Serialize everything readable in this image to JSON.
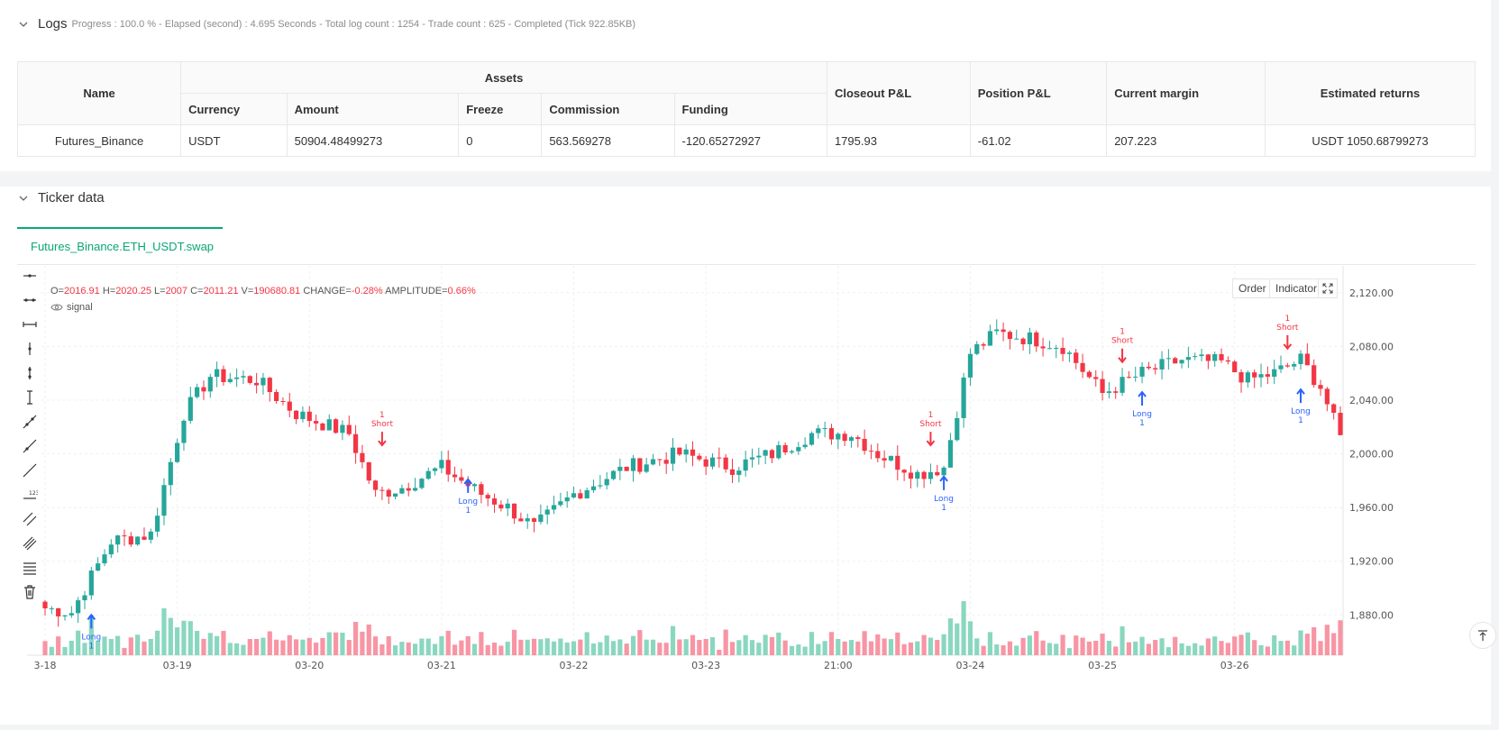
{
  "logs": {
    "title": "Logs",
    "meta": "Progress : 100.0 % - Elapsed (second) : 4.695  Seconds - Total log count : 1254 - Trade count : 625 - Completed (Tick 922.85KB)",
    "headers": {
      "name": "Name",
      "assets": "Assets",
      "currency": "Currency",
      "amount": "Amount",
      "freeze": "Freeze",
      "commission": "Commission",
      "funding": "Funding",
      "closeout": "Closeout P&L",
      "position": "Position P&L",
      "margin": "Current margin",
      "returns": "Estimated returns"
    },
    "row": {
      "name": "Futures_Binance",
      "currency": "USDT",
      "amount": "50904.48499273",
      "freeze": "0",
      "commission": "563.569278",
      "funding": "-120.65272927",
      "closeout": "1795.93",
      "position": "-61.02",
      "margin": "207.223",
      "returns": "USDT 1050.68799273"
    }
  },
  "ticker": {
    "title": "Ticker data",
    "tab": "Futures_Binance.ETH_USDT.swap",
    "order_btn": "Order",
    "indicator_btn": "Indicator",
    "signal_label": "signal",
    "ohlc": {
      "o_label": "O=",
      "o": "2016.91",
      "h_label": "H=",
      "h": "2020.25",
      "l_label": "L=",
      "l": "2007",
      "c_label": "C=",
      "c": "2011.21",
      "v_label": "V=",
      "v": "190680.81",
      "change_label": "CHANGE=",
      "change": "-0.28%",
      "amp_label": "AMPLITUDE=",
      "amp": "0.66%"
    }
  },
  "colors": {
    "up": "#26a69a",
    "down": "#f23645",
    "accent": "#0aa676",
    "signal": "#2962ff"
  },
  "chart_data": {
    "type": "candlestick",
    "symbol": "Futures_Binance.ETH_USDT.swap",
    "y_ticks": [
      1880,
      1920,
      1960,
      2000,
      2040,
      2080,
      2120
    ],
    "y_tick_labels": [
      "1,880.00",
      "1,920.00",
      "1,960.00",
      "2,000.00",
      "2,040.00",
      "2,080.00",
      "2,120.00"
    ],
    "ylim": [
      1850,
      2140
    ],
    "x_ticks": [
      {
        "label": "3-18",
        "index": 0
      },
      {
        "label": "03-19",
        "index": 20
      },
      {
        "label": "03-20",
        "index": 40
      },
      {
        "label": "03-21",
        "index": 60
      },
      {
        "label": "03-22",
        "index": 80
      },
      {
        "label": "03-23",
        "index": 100
      },
      {
        "label": "21:00",
        "index": 120
      },
      {
        "label": "03-24",
        "index": 140
      },
      {
        "label": "03-25",
        "index": 160
      },
      {
        "label": "03-26",
        "index": 180
      }
    ],
    "anchors": [
      [
        0,
        1885
      ],
      [
        4,
        1882
      ],
      [
        10,
        1935
      ],
      [
        16,
        1940
      ],
      [
        21,
        2030
      ],
      [
        25,
        2058
      ],
      [
        32,
        2055
      ],
      [
        38,
        2030
      ],
      [
        46,
        2015
      ],
      [
        50,
        1970
      ],
      [
        54,
        1975
      ],
      [
        60,
        1990
      ],
      [
        66,
        1970
      ],
      [
        70,
        1960
      ],
      [
        74,
        1945
      ],
      [
        80,
        1970
      ],
      [
        88,
        1990
      ],
      [
        96,
        2000
      ],
      [
        104,
        1990
      ],
      [
        110,
        2000
      ],
      [
        116,
        2015
      ],
      [
        122,
        2015
      ],
      [
        126,
        2000
      ],
      [
        132,
        1985
      ],
      [
        136,
        1990
      ],
      [
        140,
        2075
      ],
      [
        144,
        2090
      ],
      [
        150,
        2085
      ],
      [
        154,
        2080
      ],
      [
        160,
        2045
      ],
      [
        166,
        2060
      ],
      [
        172,
        2070
      ],
      [
        178,
        2068
      ],
      [
        182,
        2055
      ],
      [
        186,
        2060
      ],
      [
        190,
        2070
      ],
      [
        193,
        2050
      ],
      [
        196,
        2012
      ]
    ],
    "candle_count": 197,
    "signals": [
      {
        "index": 7,
        "type": "Long",
        "qty": "1",
        "price": 1882
      },
      {
        "index": 51,
        "type": "Short",
        "qty": "1",
        "price": 2003
      },
      {
        "index": 64,
        "type": "Long",
        "qty": "1",
        "price": 1983
      },
      {
        "index": 134,
        "type": "Short",
        "qty": "1",
        "price": 2003
      },
      {
        "index": 136,
        "type": "Long",
        "qty": "1",
        "price": 1985
      },
      {
        "index": 163,
        "type": "Short",
        "qty": "1",
        "price": 2065
      },
      {
        "index": 166,
        "type": "Long",
        "qty": "1",
        "price": 2048
      },
      {
        "index": 188,
        "type": "Short",
        "qty": "1",
        "price": 2075
      },
      {
        "index": 190,
        "type": "Long",
        "qty": "1",
        "price": 2050
      }
    ]
  }
}
